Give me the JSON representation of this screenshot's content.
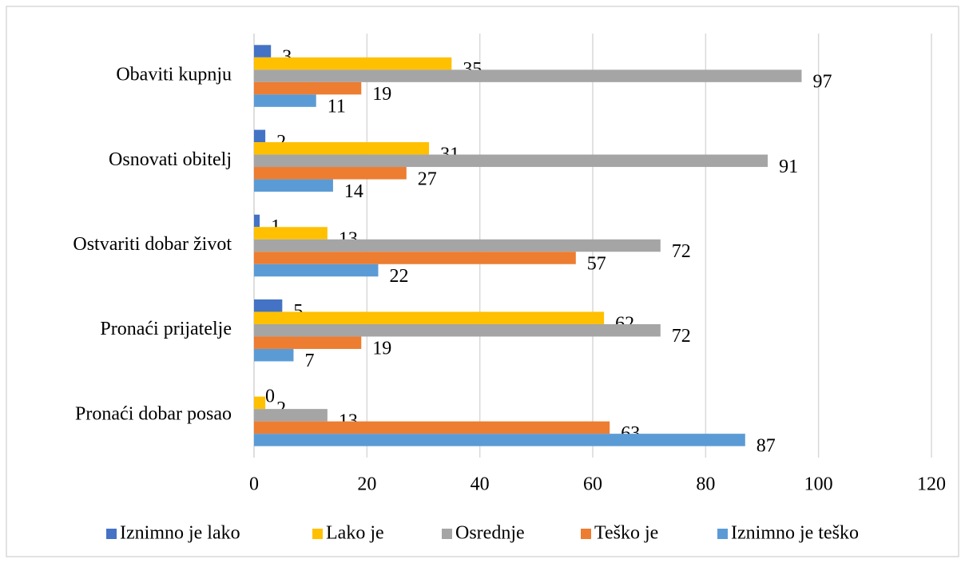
{
  "chart_data": {
    "type": "hbar",
    "categories": [
      "Obaviti kupnju",
      "Osnovati obitelj",
      "Ostvariti dobar život",
      "Pronaći prijatelje",
      "Pronaći dobar posao"
    ],
    "series": [
      {
        "name": "Iznimno je lako",
        "color": "#4472c4",
        "values": [
          3,
          2,
          1,
          5,
          0
        ]
      },
      {
        "name": "Lako je",
        "color": "#ffc000",
        "values": [
          35,
          31,
          13,
          62,
          2
        ]
      },
      {
        "name": "Osrednje",
        "color": "#a5a5a5",
        "values": [
          97,
          91,
          72,
          72,
          13
        ]
      },
      {
        "name": "Teško je",
        "color": "#ed7d31",
        "values": [
          19,
          27,
          57,
          19,
          63
        ]
      },
      {
        "name": "Iznimno je teško",
        "color": "#5b9bd5",
        "values": [
          11,
          14,
          22,
          7,
          87
        ]
      }
    ],
    "xlim": [
      0,
      120
    ],
    "xticks": [
      0,
      20,
      40,
      60,
      80,
      100,
      120
    ],
    "grid": true,
    "legend": "bottom"
  }
}
